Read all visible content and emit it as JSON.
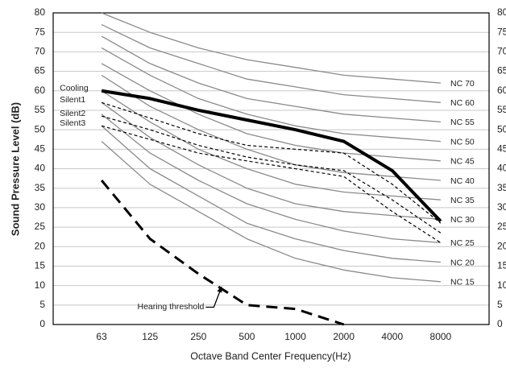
{
  "chart_data": {
    "type": "line",
    "y_label": "Sound Pressure Level (dB)",
    "x_label": "Octave Band Center Frequency(Hz)",
    "categories": [
      "63",
      "125",
      "250",
      "500",
      "1000",
      "2000",
      "4000",
      "8000"
    ],
    "ylim": [
      0,
      80
    ],
    "yticks": [
      0,
      5,
      10,
      15,
      20,
      25,
      30,
      35,
      40,
      45,
      50,
      55,
      60,
      65,
      70,
      75,
      80
    ],
    "grid": true,
    "series": [
      {
        "name": "NC 70",
        "color": "#8a8a8a",
        "style": "solid",
        "width": 1.3,
        "label_at": "end",
        "values": [
          80,
          75,
          71,
          68,
          66,
          64,
          63,
          62
        ]
      },
      {
        "name": "NC 60",
        "color": "#8a8a8a",
        "style": "solid",
        "width": 1.3,
        "label_at": "end",
        "values": [
          77,
          71,
          67,
          63,
          61,
          59,
          58,
          57
        ]
      },
      {
        "name": "NC 55",
        "color": "#8a8a8a",
        "style": "solid",
        "width": 1.3,
        "label_at": "end",
        "values": [
          74,
          67,
          62,
          58,
          56,
          54,
          53,
          52
        ]
      },
      {
        "name": "NC 50",
        "color": "#8a8a8a",
        "style": "solid",
        "width": 1.3,
        "label_at": "end",
        "values": [
          71,
          64,
          58,
          54,
          51,
          49,
          48,
          47
        ]
      },
      {
        "name": "NC 45",
        "color": "#8a8a8a",
        "style": "solid",
        "width": 1.3,
        "label_at": "end",
        "values": [
          67,
          60,
          54,
          49,
          46,
          44,
          43,
          42
        ]
      },
      {
        "name": "NC 40",
        "color": "#8a8a8a",
        "style": "solid",
        "width": 1.3,
        "label_at": "end",
        "values": [
          64,
          56,
          50,
          45,
          41,
          39,
          38,
          37
        ]
      },
      {
        "name": "NC 35",
        "color": "#8a8a8a",
        "style": "solid",
        "width": 1.3,
        "label_at": "end",
        "values": [
          60,
          52,
          45,
          40,
          36,
          34,
          33,
          32
        ]
      },
      {
        "name": "NC 30",
        "color": "#8a8a8a",
        "style": "solid",
        "width": 1.3,
        "label_at": "end",
        "values": [
          57,
          48,
          41,
          35,
          31,
          29,
          28,
          27
        ]
      },
      {
        "name": "NC 25",
        "color": "#8a8a8a",
        "style": "solid",
        "width": 1.3,
        "label_at": "end",
        "values": [
          54,
          44,
          37,
          31,
          27,
          24,
          22,
          21
        ]
      },
      {
        "name": "NC 20",
        "color": "#8a8a8a",
        "style": "solid",
        "width": 1.3,
        "label_at": "end",
        "values": [
          51,
          40,
          33,
          26,
          22,
          19,
          17,
          16
        ]
      },
      {
        "name": "NC 15",
        "color": "#8a8a8a",
        "style": "solid",
        "width": 1.3,
        "label_at": "end",
        "values": [
          47,
          36,
          29,
          22,
          17,
          14,
          12,
          11
        ]
      },
      {
        "name": "Cooling",
        "color": "#000000",
        "style": "solid",
        "width": 4,
        "label_at": "start",
        "values": [
          60,
          58,
          55,
          52.5,
          50,
          47,
          39.5,
          26.5
        ]
      },
      {
        "name": "Silent1",
        "color": "#000000",
        "style": "dashed",
        "width": 1.2,
        "label_at": "start",
        "values": [
          57,
          53,
          49,
          46,
          45,
          44,
          36,
          26
        ]
      },
      {
        "name": "Silent2",
        "color": "#000000",
        "style": "dashed",
        "width": 1.2,
        "label_at": "start",
        "values": [
          53.5,
          50,
          46,
          43,
          41,
          39.5,
          32,
          23.5
        ]
      },
      {
        "name": "Silent3",
        "color": "#000000",
        "style": "dashed",
        "width": 1.2,
        "label_at": "start",
        "values": [
          51,
          47.5,
          44,
          42,
          40,
          38,
          29,
          21
        ]
      },
      {
        "name": "Hearing threshold",
        "color": "#000000",
        "style": "longdash",
        "width": 3,
        "label_at": "annotation",
        "values": [
          37,
          22,
          13,
          5,
          4,
          0,
          null,
          null
        ]
      }
    ]
  }
}
